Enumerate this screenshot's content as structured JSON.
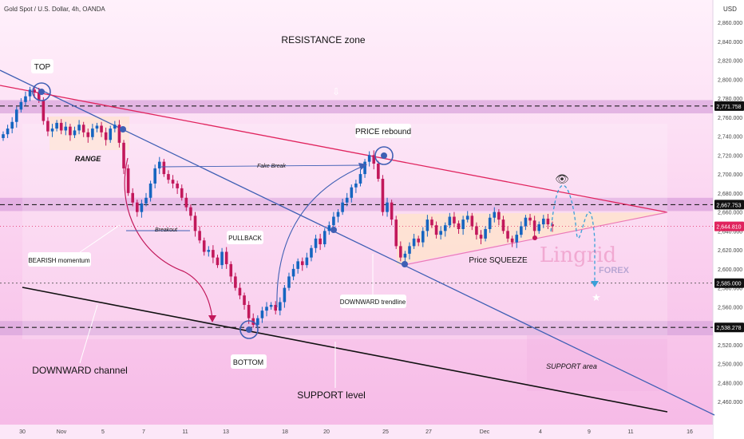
{
  "header": {
    "symbol": "Gold Spot / U.S. Dollar, 4h, OANDA",
    "currency": "USD"
  },
  "colors": {
    "up": "#1565c0",
    "down": "#c2185b",
    "resistance_band": "#d9a6dc",
    "support_band": "#d9a6dc",
    "channel_line": "#3f5fb4",
    "trend_line": "#e0245e",
    "support_line": "#111111",
    "last_price": "#e0245e"
  },
  "chart_data": {
    "type": "candlestick",
    "title": "",
    "xlabel": "",
    "ylabel": "USD",
    "ylim": [
      2440,
      2870
    ],
    "x_ticks": [
      "30",
      "Nov",
      "5",
      "7",
      "11",
      "13",
      "18",
      "20",
      "25",
      "27",
      "Dec",
      "4",
      "9",
      "11",
      "16"
    ],
    "y_ticks": [
      "2,860.000",
      "2,840.000",
      "2,820.000",
      "2,800.000",
      "2,780.000",
      "2,760.000",
      "2,740.000",
      "2,720.000",
      "2,700.000",
      "2,680.000",
      "2,660.000",
      "2,640.000",
      "2,620.000",
      "2,600.000",
      "2,580.000",
      "2,560.000",
      "2,540.000",
      "2,520.000",
      "2,500.000",
      "2,480.000",
      "2,460.000"
    ],
    "price_levels": [
      {
        "label": "2,771.758",
        "value": 2771.758,
        "style": "dashed"
      },
      {
        "label": "2,667.753",
        "value": 2667.753,
        "style": "dashed"
      },
      {
        "label": "2,644.810",
        "value": 2644.81,
        "style": "last"
      },
      {
        "label": "2,585.000",
        "value": 2585.0,
        "style": "dotted"
      },
      {
        "label": "2,538.278",
        "value": 2538.278,
        "style": "dashed"
      }
    ],
    "bands": [
      {
        "name": "resistance",
        "from": 2764,
        "to": 2778
      },
      {
        "name": "mid",
        "from": 2661,
        "to": 2675
      },
      {
        "name": "support",
        "from": 2530,
        "to": 2545
      }
    ],
    "candles_close": [
      2742,
      2748,
      2755,
      2768,
      2776,
      2782,
      2789,
      2786,
      2778,
      2756,
      2745,
      2748,
      2754,
      2746,
      2750,
      2741,
      2746,
      2752,
      2744,
      2739,
      2748,
      2751,
      2744,
      2736,
      2748,
      2752,
      2733,
      2706,
      2680,
      2670,
      2660,
      2669,
      2675,
      2690,
      2706,
      2713,
      2700,
      2694,
      2690,
      2685,
      2675,
      2665,
      2656,
      2640,
      2630,
      2618,
      2620,
      2612,
      2604,
      2618,
      2605,
      2592,
      2580,
      2572,
      2562,
      2548,
      2541,
      2548,
      2556,
      2560,
      2562,
      2556,
      2565,
      2580,
      2592,
      2600,
      2608,
      2604,
      2612,
      2622,
      2632,
      2626,
      2640,
      2646,
      2655,
      2660,
      2670,
      2675,
      2686,
      2690,
      2700,
      2713,
      2720,
      2711,
      2695,
      2660,
      2670,
      2652,
      2624,
      2612,
      2616,
      2624,
      2632,
      2628,
      2640,
      2652,
      2646,
      2636,
      2640,
      2646,
      2655,
      2648,
      2642,
      2652,
      2656,
      2645,
      2636,
      2632,
      2642,
      2654,
      2660,
      2652,
      2640,
      2632,
      2628,
      2636,
      2645,
      2654,
      2651,
      2640,
      2647,
      2653,
      2647,
      2645
    ]
  },
  "annotations": {
    "resistance_zone": "RESISTANCE zone",
    "top": "TOP",
    "range": "RANGE",
    "fake_break": "Fake Break",
    "price_rebound": "PRICE rebound",
    "breakout": "Breakout",
    "pullback": "PULLBACK",
    "bearish_momentum": "BEARISH momentum",
    "downward_trendline": "DOWNWARD trendline",
    "price_squeeze": "Price SQUEEZE",
    "bottom": "BOTTOM",
    "downward_channel": "DOWNWARD channel",
    "support_level": "SUPPORT level",
    "support_area": "SUPPORT area"
  },
  "watermark": {
    "brand": "Lingrid",
    "sub": "FOREX"
  }
}
